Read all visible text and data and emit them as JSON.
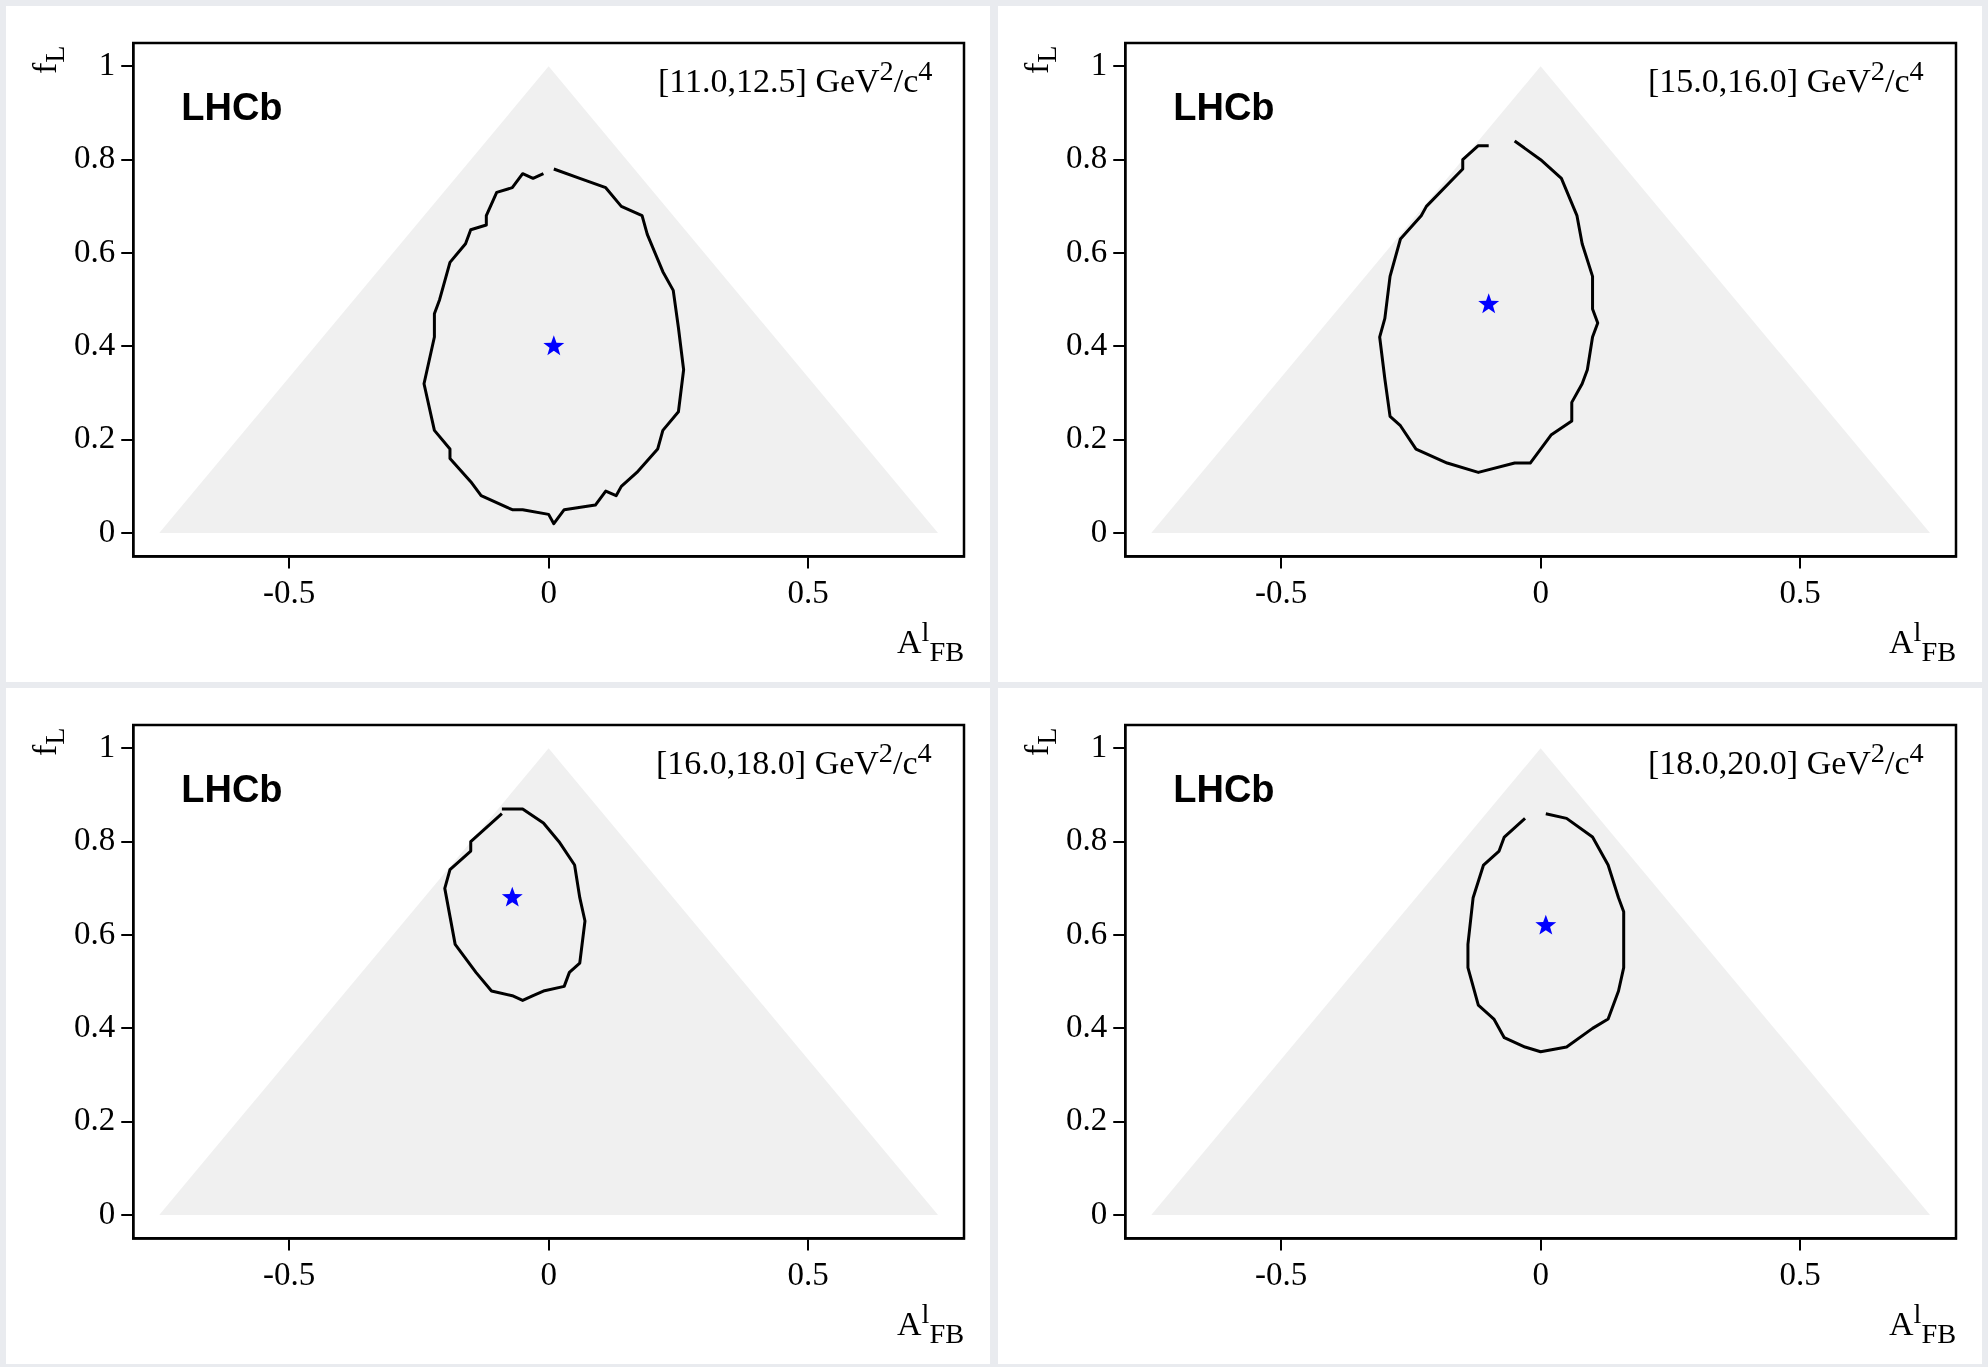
{
  "chart_data": [
    {
      "type": "line",
      "xlabel": "A$^{l}$$_{FB}$",
      "ylabel": "f$_{L}$",
      "annotations": [
        "LHCb",
        "[11.0,12.5] GeV$^{2}$/c$^{4}$"
      ],
      "xlim": [
        -0.8,
        0.8
      ],
      "ylim": [
        -0.05,
        1.05
      ],
      "xticks": [
        -0.5,
        0,
        0.5
      ],
      "yticks": [
        0,
        0.2,
        0.4,
        0.6,
        0.8,
        1
      ],
      "legend": false,
      "series": [
        {
          "type": "area",
          "color": "#f0f0f0",
          "x": [
            -0.75,
            0,
            0.75
          ],
          "values": [
            0,
            1,
            0
          ]
        },
        {
          "type": "line",
          "color": "#000000",
          "marker": "none",
          "x": [
            0.01,
            0.06,
            0.11,
            0.14,
            0.18,
            0.19,
            0.22,
            0.24,
            0.25,
            0.26,
            0.25,
            0.22,
            0.21,
            0.17,
            0.14,
            0.13,
            0.11,
            0.09,
            0.03,
            0.01,
            0.0,
            -0.05,
            -0.07,
            -0.13,
            -0.15,
            -0.19,
            -0.19,
            -0.22,
            -0.24,
            -0.22,
            -0.22,
            -0.21,
            -0.19,
            -0.16,
            -0.15,
            -0.12,
            -0.12,
            -0.1,
            -0.07,
            -0.05,
            -0.03,
            -0.01
          ],
          "values": [
            0.78,
            0.76,
            0.74,
            0.7,
            0.68,
            0.64,
            0.56,
            0.52,
            0.44,
            0.35,
            0.26,
            0.22,
            0.18,
            0.13,
            0.1,
            0.08,
            0.09,
            0.06,
            0.05,
            0.02,
            0.04,
            0.05,
            0.05,
            0.08,
            0.11,
            0.16,
            0.18,
            0.22,
            0.32,
            0.42,
            0.47,
            0.5,
            0.58,
            0.62,
            0.65,
            0.66,
            0.68,
            0.73,
            0.74,
            0.77,
            0.76,
            0.77
          ]
        },
        {
          "type": "scatter",
          "color": "#0000ff",
          "marker": "star",
          "x": [
            0.01
          ],
          "values": [
            0.4
          ]
        }
      ]
    },
    {
      "type": "line",
      "xlabel": "A$^{l}$$_{FB}$",
      "ylabel": "f$_{L}$",
      "annotations": [
        "LHCb",
        "[15.0,16.0] GeV$^{2}$/c$^{4}$"
      ],
      "xlim": [
        -0.8,
        0.8
      ],
      "ylim": [
        -0.05,
        1.05
      ],
      "xticks": [
        -0.5,
        0,
        0.5
      ],
      "yticks": [
        0,
        0.2,
        0.4,
        0.6,
        0.8,
        1
      ],
      "legend": false,
      "series": [
        {
          "type": "area",
          "color": "#f0f0f0",
          "x": [
            -0.75,
            0,
            0.75
          ],
          "values": [
            0,
            1,
            0
          ]
        },
        {
          "type": "line",
          "color": "#000000",
          "marker": "none",
          "x": [
            -0.05,
            0.0,
            0.04,
            0.07,
            0.08,
            0.1,
            0.1,
            0.11,
            0.1,
            0.09,
            0.08,
            0.06,
            0.06,
            0.02,
            -0.02,
            -0.05,
            -0.12,
            -0.18,
            -0.24,
            -0.27,
            -0.29,
            -0.3,
            -0.31,
            -0.3,
            -0.29,
            -0.27,
            -0.23,
            -0.22,
            -0.15,
            -0.15,
            -0.12,
            -0.1
          ],
          "values": [
            0.84,
            0.8,
            0.76,
            0.68,
            0.62,
            0.55,
            0.48,
            0.45,
            0.42,
            0.35,
            0.32,
            0.28,
            0.24,
            0.21,
            0.15,
            0.15,
            0.13,
            0.15,
            0.18,
            0.23,
            0.25,
            0.33,
            0.42,
            0.46,
            0.55,
            0.63,
            0.68,
            0.7,
            0.78,
            0.8,
            0.83,
            0.83
          ]
        },
        {
          "type": "scatter",
          "color": "#0000ff",
          "marker": "star",
          "x": [
            -0.1
          ],
          "values": [
            0.49
          ]
        }
      ]
    },
    {
      "type": "line",
      "xlabel": "A$^{l}$$_{FB}$",
      "ylabel": "f$_{L}$",
      "annotations": [
        "LHCb",
        "[16.0,18.0] GeV$^{2}$/c$^{4}$"
      ],
      "xlim": [
        -0.8,
        0.8
      ],
      "ylim": [
        -0.05,
        1.05
      ],
      "xticks": [
        -0.5,
        0,
        0.5
      ],
      "yticks": [
        0,
        0.2,
        0.4,
        0.6,
        0.8,
        1
      ],
      "legend": false,
      "series": [
        {
          "type": "area",
          "color": "#f0f0f0",
          "x": [
            -0.75,
            0,
            0.75
          ],
          "values": [
            0,
            1,
            0
          ]
        },
        {
          "type": "line",
          "color": "#000000",
          "marker": "none",
          "x": [
            -0.09,
            -0.05,
            -0.01,
            0.02,
            0.05,
            0.06,
            0.07,
            0.06,
            0.04,
            0.03,
            -0.01,
            -0.03,
            -0.05,
            -0.07,
            -0.11,
            -0.14,
            -0.18,
            -0.19,
            -0.2,
            -0.19,
            -0.15,
            -0.15,
            -0.09
          ],
          "values": [
            0.87,
            0.87,
            0.84,
            0.8,
            0.75,
            0.68,
            0.63,
            0.54,
            0.52,
            0.49,
            0.48,
            0.47,
            0.46,
            0.47,
            0.48,
            0.52,
            0.58,
            0.64,
            0.7,
            0.74,
            0.78,
            0.8,
            0.86
          ]
        },
        {
          "type": "scatter",
          "color": "#0000ff",
          "marker": "star",
          "x": [
            -0.07
          ],
          "values": [
            0.68
          ]
        }
      ]
    },
    {
      "type": "line",
      "xlabel": "A$^{l}$$_{FB}$",
      "ylabel": "f$_{L}$",
      "annotations": [
        "LHCb",
        "[18.0,20.0] GeV$^{2}$/c$^{4}$"
      ],
      "xlim": [
        -0.8,
        0.8
      ],
      "ylim": [
        -0.05,
        1.05
      ],
      "xticks": [
        -0.5,
        0,
        0.5
      ],
      "yticks": [
        0,
        0.2,
        0.4,
        0.6,
        0.8,
        1
      ],
      "legend": false,
      "series": [
        {
          "type": "area",
          "color": "#f0f0f0",
          "x": [
            -0.75,
            0,
            0.75
          ],
          "values": [
            0,
            1,
            0
          ]
        },
        {
          "type": "line",
          "color": "#000000",
          "marker": "none",
          "x": [
            0.01,
            0.05,
            0.1,
            0.13,
            0.15,
            0.16,
            0.16,
            0.15,
            0.13,
            0.1,
            0.05,
            0.0,
            -0.03,
            -0.07,
            -0.09,
            -0.12,
            -0.14,
            -0.14,
            -0.13,
            -0.11,
            -0.08,
            -0.07,
            -0.03
          ],
          "values": [
            0.86,
            0.85,
            0.81,
            0.75,
            0.68,
            0.65,
            0.53,
            0.48,
            0.42,
            0.4,
            0.36,
            0.35,
            0.36,
            0.38,
            0.42,
            0.45,
            0.53,
            0.58,
            0.68,
            0.75,
            0.78,
            0.81,
            0.85
          ]
        },
        {
          "type": "scatter",
          "color": "#0000ff",
          "marker": "star",
          "x": [
            0.01
          ],
          "values": [
            0.62
          ]
        }
      ]
    }
  ]
}
